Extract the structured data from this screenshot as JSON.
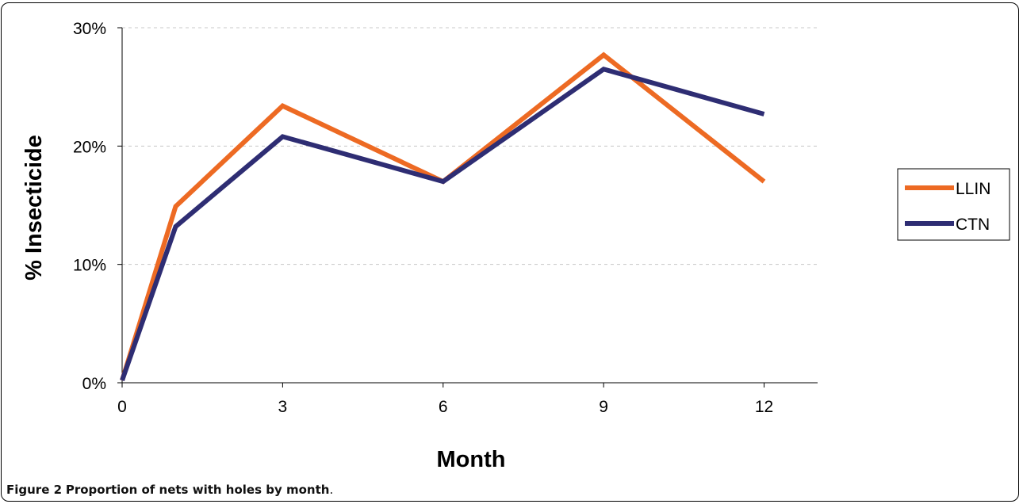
{
  "caption": {
    "label": "Figure 2",
    "text": "Proportion of nets with holes by month",
    "end": "."
  },
  "chart_data": {
    "type": "line",
    "title": "",
    "xlabel": "Month",
    "ylabel": "% Insecticide",
    "xlim": [
      0,
      13
    ],
    "ylim": [
      0,
      30
    ],
    "xticks": [
      0,
      3,
      6,
      9,
      12
    ],
    "yticks": [
      0,
      10,
      20,
      30
    ],
    "ytick_format": "%",
    "grid": "horizontal dashed",
    "legend": "right",
    "series": [
      {
        "name": "LLIN",
        "color": "#ed6a23",
        "x": [
          0,
          1,
          3,
          6,
          9,
          12
        ],
        "y": [
          0.2,
          14.9,
          23.4,
          17.0,
          27.7,
          17.0
        ]
      },
      {
        "name": "CTN",
        "color": "#2e2d73",
        "x": [
          0,
          1,
          3,
          6,
          9,
          12
        ],
        "y": [
          0.2,
          13.2,
          20.8,
          17.0,
          26.5,
          22.7
        ]
      }
    ]
  }
}
